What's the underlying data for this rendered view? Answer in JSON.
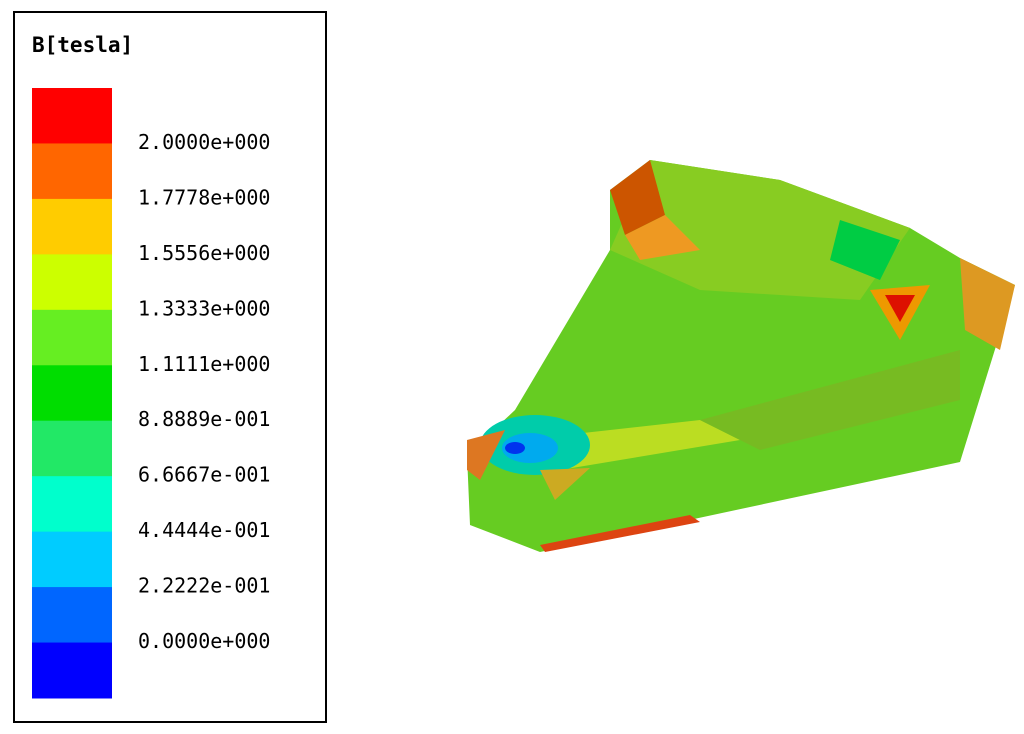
{
  "legend": {
    "title": "B[tesla]",
    "labels": [
      "2.0000e+000",
      "1.7778e+000",
      "1.5556e+000",
      "1.3333e+000",
      "1.1111e+000",
      "8.8889e-001",
      "6.6667e-001",
      "4.4444e-001",
      "2.2222e-001",
      "0.0000e+000"
    ],
    "colors": [
      "#ff0000",
      "#ff6600",
      "#ffcc00",
      "#ccff00",
      "#66ee22",
      "#00dd00",
      "#22e866",
      "#00ffcc",
      "#00ccff",
      "#0066ff",
      "#0000ff"
    ]
  }
}
